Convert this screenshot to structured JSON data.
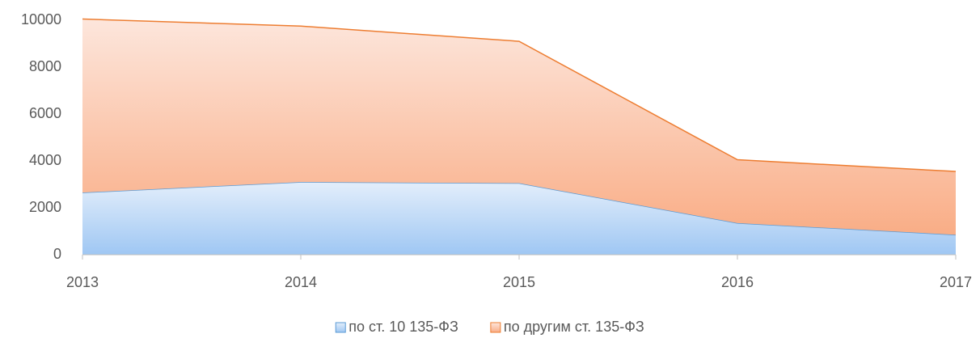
{
  "chart_data": {
    "type": "stacked_area",
    "categories": [
      "2013",
      "2014",
      "2015",
      "2016",
      "2017"
    ],
    "series": [
      {
        "name": "по ст. 10 135-ФЗ",
        "color": "#5b9bd5",
        "values": [
          2650,
          3100,
          3050,
          1350,
          850
        ]
      },
      {
        "name": "по другим ст. 135-ФЗ",
        "color": "#ed7d31",
        "values": [
          7400,
          6650,
          6050,
          2700,
          2700
        ]
      }
    ],
    "ylim": [
      0,
      10000
    ],
    "yticks": [
      0,
      2000,
      4000,
      6000,
      8000,
      10000
    ],
    "grid": false,
    "legend": "bottom"
  }
}
